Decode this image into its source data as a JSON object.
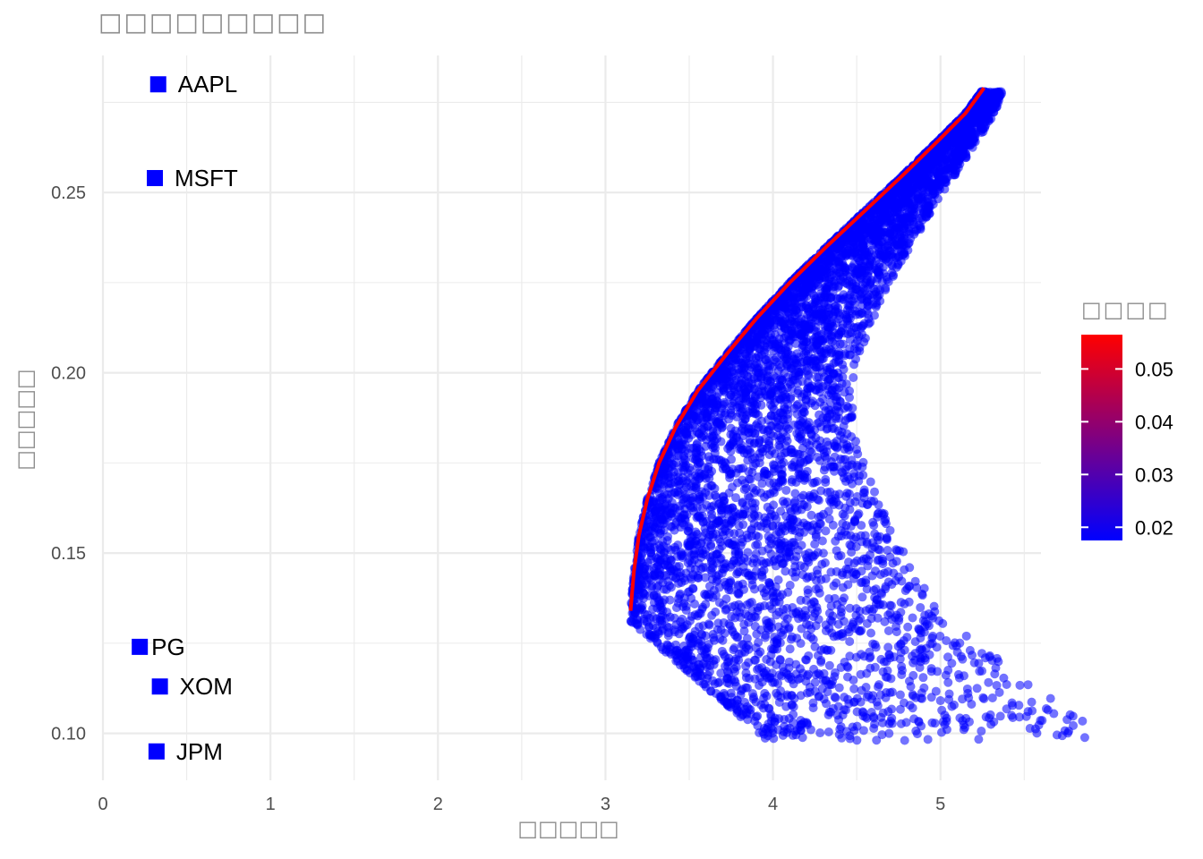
{
  "chart_data": {
    "type": "scatter",
    "title": "□□□□□□□□□",
    "xlabel": "□□□□□",
    "ylabel": "□□□□□",
    "xlim": [
      0,
      5.6
    ],
    "ylim": [
      0.087,
      0.288
    ],
    "x_ticks": [
      "0",
      "1",
      "2",
      "3",
      "4",
      "5"
    ],
    "y_ticks": [
      "0.10",
      "0.15",
      "0.20",
      "0.25"
    ],
    "grid": true,
    "assets": [
      {
        "name": "AAPL",
        "x": 0.33,
        "y": 0.28
      },
      {
        "name": "MSFT",
        "x": 0.31,
        "y": 0.254
      },
      {
        "name": "PG",
        "x": 0.22,
        "y": 0.124
      },
      {
        "name": "XOM",
        "x": 0.34,
        "y": 0.113
      },
      {
        "name": "JPM",
        "x": 0.32,
        "y": 0.095
      }
    ],
    "portfolio_cloud": {
      "description_points": 6000,
      "frontier_x": [
        3.15,
        3.17,
        3.2,
        3.25,
        3.32,
        3.42,
        3.55,
        3.72,
        3.9,
        4.1,
        4.32,
        4.55,
        4.78,
        5.0,
        5.15,
        5.26
      ],
      "frontier_y": [
        0.134,
        0.145,
        0.155,
        0.165,
        0.175,
        0.185,
        0.195,
        0.205,
        0.215,
        0.225,
        0.235,
        0.245,
        0.255,
        0.265,
        0.272,
        0.279
      ],
      "color_range": [
        0.018,
        0.057
      ]
    },
    "legend": {
      "title": "□□□□",
      "ticks": [
        "0.02",
        "0.03",
        "0.04",
        "0.05"
      ],
      "tick_values": [
        0.02,
        0.03,
        0.04,
        0.05
      ],
      "low_color": "#0000ff",
      "high_color": "#ff0000",
      "position": "right"
    }
  }
}
